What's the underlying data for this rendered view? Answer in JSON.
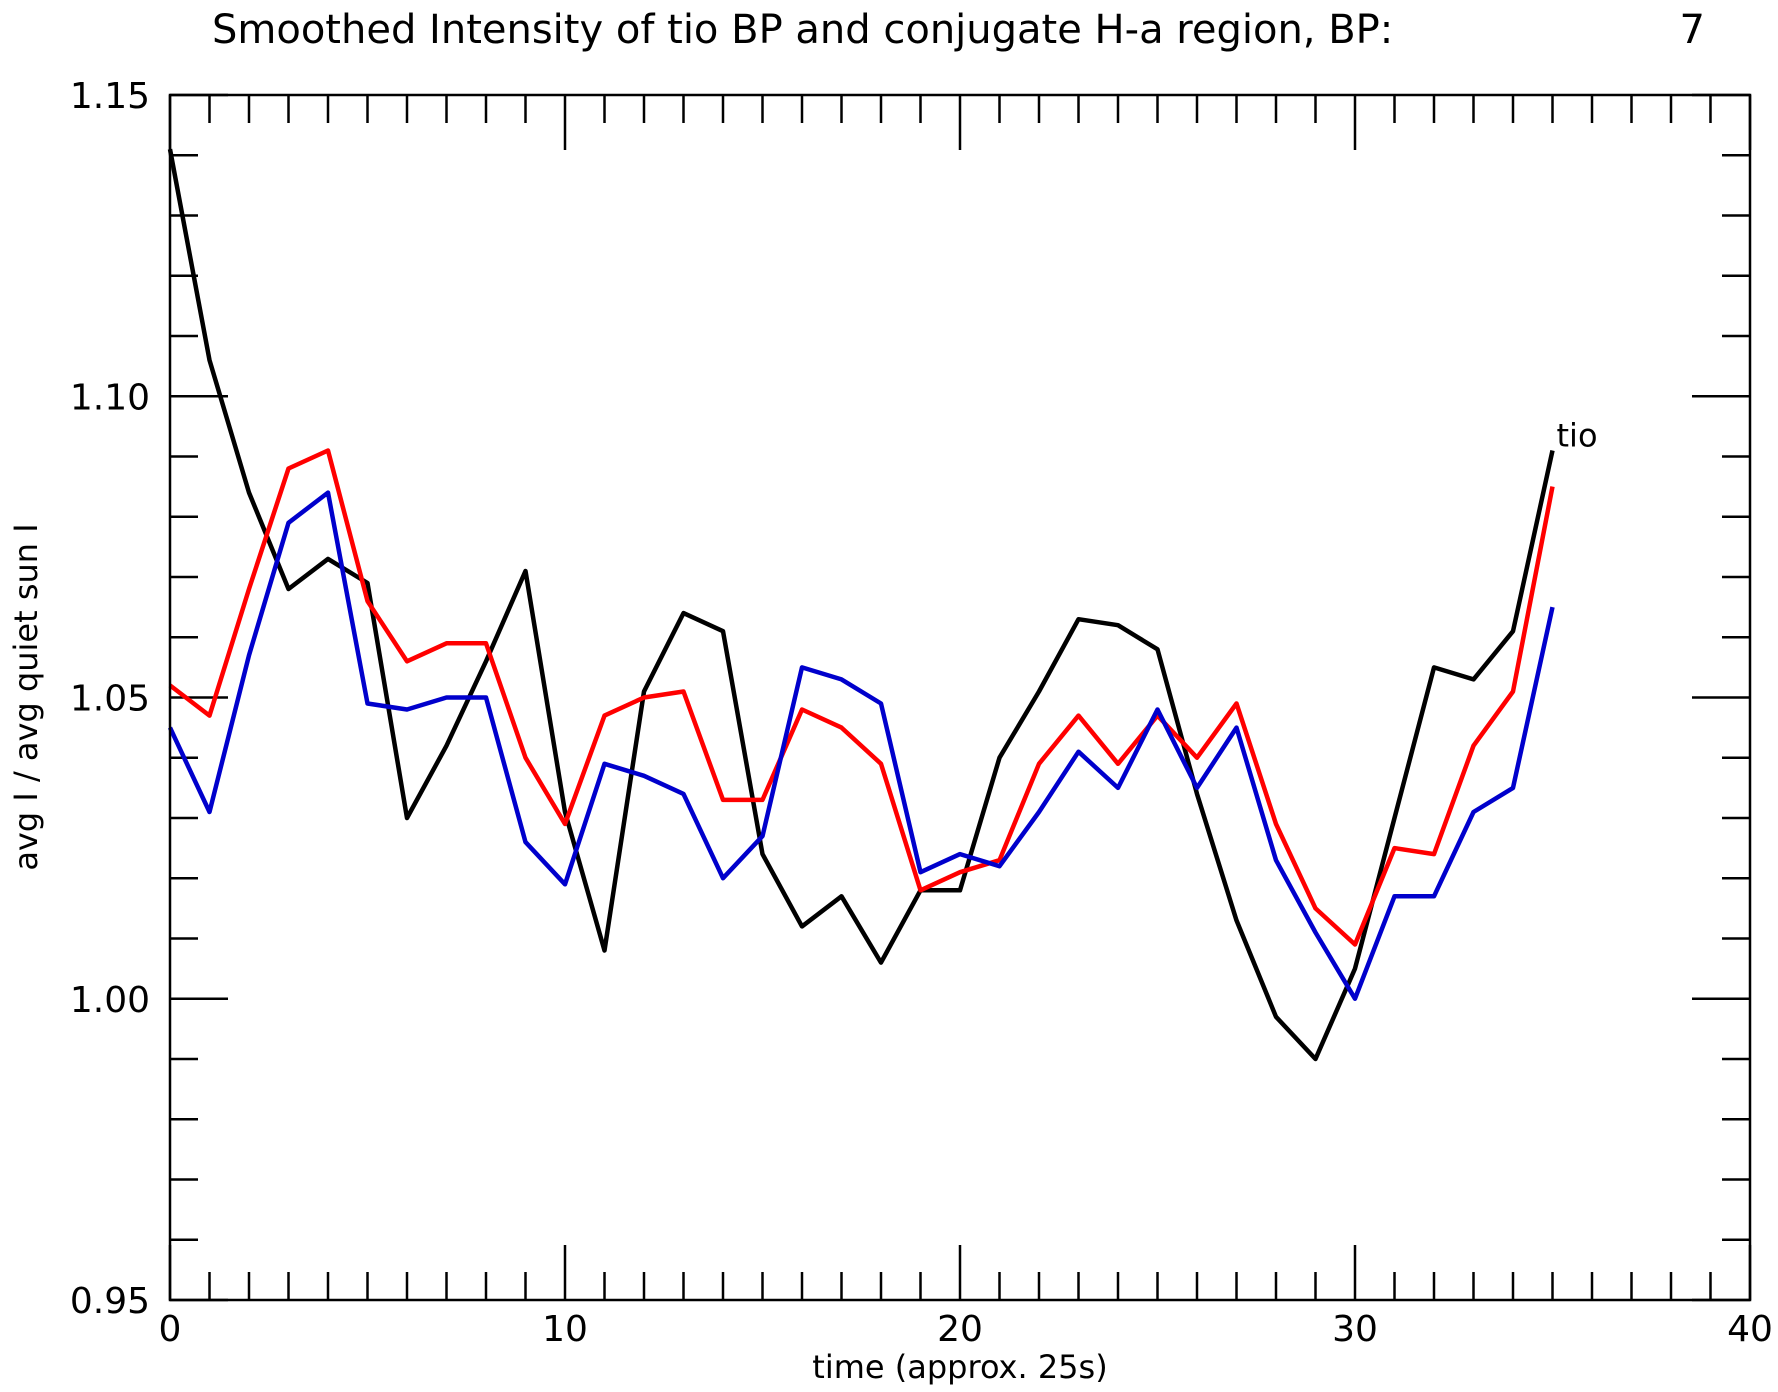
{
  "chart_data": {
    "type": "line",
    "title": "Smoothed Intensity of tio BP and conjugate H-a region, BP:",
    "title_value": "7",
    "xlabel": "time (approx. 25s)",
    "ylabel": "avg I / avg quiet sun I",
    "xlim": [
      0,
      40
    ],
    "ylim": [
      0.95,
      1.15
    ],
    "x_major_ticks": [
      0,
      10,
      20,
      30,
      40
    ],
    "x_tick_labels": [
      "0",
      "10",
      "20",
      "30",
      "40"
    ],
    "x_minor_step": 1,
    "y_major_ticks": [
      0.95,
      1.0,
      1.05,
      1.1,
      1.15
    ],
    "y_tick_labels": [
      "0.95",
      "1.00",
      "1.05",
      "1.10",
      "1.15"
    ],
    "y_minor_step": 0.01,
    "grid": false,
    "x": [
      0,
      1,
      2,
      3,
      4,
      5,
      6,
      7,
      8,
      9,
      10,
      11,
      12,
      13,
      14,
      15,
      16,
      17,
      18,
      19,
      20,
      21,
      22,
      23,
      24,
      25,
      26,
      27,
      28,
      29,
      30,
      31,
      32,
      33,
      34,
      35
    ],
    "series": [
      {
        "name": "tio",
        "color": "#000000",
        "values": [
          1.141,
          1.106,
          1.084,
          1.068,
          1.073,
          1.069,
          1.03,
          1.042,
          1.056,
          1.071,
          1.031,
          1.008,
          1.051,
          1.064,
          1.061,
          1.024,
          1.012,
          1.017,
          1.006,
          1.018,
          1.018,
          1.04,
          1.051,
          1.063,
          1.062,
          1.058,
          1.034,
          1.013,
          0.997,
          0.99,
          1.005,
          1.03,
          1.055,
          1.053,
          1.061,
          1.091
        ]
      },
      {
        "color": "#ff0000",
        "values": [
          1.052,
          1.047,
          1.068,
          1.088,
          1.091,
          1.066,
          1.056,
          1.059,
          1.059,
          1.04,
          1.029,
          1.047,
          1.05,
          1.051,
          1.033,
          1.033,
          1.048,
          1.045,
          1.039,
          1.018,
          1.021,
          1.023,
          1.039,
          1.047,
          1.039,
          1.047,
          1.04,
          1.049,
          1.029,
          1.015,
          1.009,
          1.025,
          1.024,
          1.042,
          1.051,
          1.085
        ]
      },
      {
        "color": "#0000cc",
        "values": [
          1.045,
          1.031,
          1.057,
          1.079,
          1.084,
          1.049,
          1.048,
          1.05,
          1.05,
          1.026,
          1.019,
          1.039,
          1.037,
          1.034,
          1.02,
          1.027,
          1.055,
          1.053,
          1.049,
          1.021,
          1.024,
          1.022,
          1.031,
          1.041,
          1.035,
          1.048,
          1.035,
          1.045,
          1.023,
          1.011,
          1.0,
          1.017,
          1.017,
          1.031,
          1.035,
          1.065
        ]
      }
    ]
  }
}
